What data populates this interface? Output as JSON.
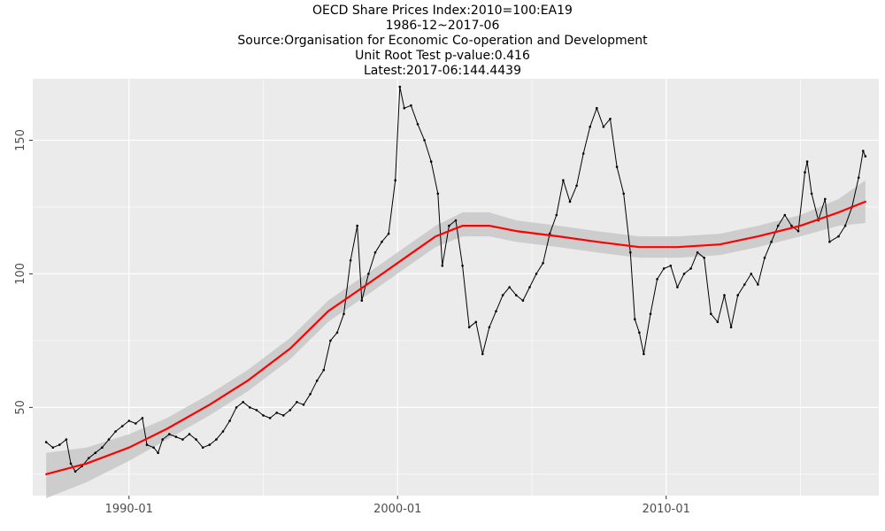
{
  "titles": {
    "line1": "OECD Share Prices Index:2010=100:EA19",
    "line2": "1986-12~2017-06",
    "line3": "Source:Organisation for Economic Co-operation and Development",
    "line4": "Unit Root Test p-value:0.416",
    "line5": "Latest:2017-06:144.4439"
  },
  "colors": {
    "panel": "#ebebeb",
    "grid_major": "#ffffff",
    "series": "#000000",
    "smooth": "#ff0000",
    "ribbon": "#c8c8c8"
  },
  "chart_data": {
    "type": "line",
    "title": "OECD Share Prices Index:2010=100:EA19",
    "subtitle": [
      "1986-12~2017-06",
      "Source:Organisation for Economic Co-operation and Development",
      "Unit Root Test p-value:0.416",
      "Latest:2017-06:144.4439"
    ],
    "xlabel": "",
    "ylabel": "",
    "xlim": [
      "1986-06",
      "2017-12"
    ],
    "ylim": [
      17,
      173
    ],
    "x_ticks": [
      "1990-01",
      "2000-01",
      "2010-01"
    ],
    "y_ticks": [
      50,
      100,
      150
    ],
    "grid": true,
    "series": [
      {
        "kind": "monthly-index-with-points",
        "points": [
          [
            "1986-12",
            37
          ],
          [
            "1987-03",
            35
          ],
          [
            "1987-06",
            36
          ],
          [
            "1987-09",
            38
          ],
          [
            "1987-11",
            29
          ],
          [
            "1988-01",
            26
          ],
          [
            "1988-04",
            28
          ],
          [
            "1988-07",
            31
          ],
          [
            "1988-10",
            33
          ],
          [
            "1989-01",
            35
          ],
          [
            "1989-04",
            38
          ],
          [
            "1989-07",
            41
          ],
          [
            "1989-10",
            43
          ],
          [
            "1990-01",
            45
          ],
          [
            "1990-04",
            44
          ],
          [
            "1990-07",
            46
          ],
          [
            "1990-09",
            36
          ],
          [
            "1990-12",
            35
          ],
          [
            "1991-02",
            33
          ],
          [
            "1991-04",
            38
          ],
          [
            "1991-07",
            40
          ],
          [
            "1991-10",
            39
          ],
          [
            "1992-01",
            38
          ],
          [
            "1992-04",
            40
          ],
          [
            "1992-07",
            38
          ],
          [
            "1992-10",
            35
          ],
          [
            "1993-01",
            36
          ],
          [
            "1993-04",
            38
          ],
          [
            "1993-07",
            41
          ],
          [
            "1993-10",
            45
          ],
          [
            "1994-01",
            50
          ],
          [
            "1994-04",
            52
          ],
          [
            "1994-07",
            50
          ],
          [
            "1994-10",
            49
          ],
          [
            "1995-01",
            47
          ],
          [
            "1995-04",
            46
          ],
          [
            "1995-07",
            48
          ],
          [
            "1995-10",
            47
          ],
          [
            "1996-01",
            49
          ],
          [
            "1996-04",
            52
          ],
          [
            "1996-07",
            51
          ],
          [
            "1996-10",
            55
          ],
          [
            "1997-01",
            60
          ],
          [
            "1997-04",
            64
          ],
          [
            "1997-07",
            75
          ],
          [
            "1997-10",
            78
          ],
          [
            "1998-01",
            85
          ],
          [
            "1998-04",
            105
          ],
          [
            "1998-07",
            118
          ],
          [
            "1998-09",
            90
          ],
          [
            "1998-12",
            100
          ],
          [
            "1999-03",
            108
          ],
          [
            "1999-06",
            112
          ],
          [
            "1999-09",
            115
          ],
          [
            "1999-12",
            135
          ],
          [
            "2000-02",
            170
          ],
          [
            "2000-04",
            162
          ],
          [
            "2000-07",
            163
          ],
          [
            "2000-10",
            156
          ],
          [
            "2001-01",
            150
          ],
          [
            "2001-04",
            142
          ],
          [
            "2001-07",
            130
          ],
          [
            "2001-09",
            103
          ],
          [
            "2001-12",
            118
          ],
          [
            "2002-03",
            120
          ],
          [
            "2002-06",
            103
          ],
          [
            "2002-09",
            80
          ],
          [
            "2002-12",
            82
          ],
          [
            "2003-03",
            70
          ],
          [
            "2003-06",
            80
          ],
          [
            "2003-09",
            86
          ],
          [
            "2003-12",
            92
          ],
          [
            "2004-03",
            95
          ],
          [
            "2004-06",
            92
          ],
          [
            "2004-09",
            90
          ],
          [
            "2004-12",
            95
          ],
          [
            "2005-03",
            100
          ],
          [
            "2005-06",
            104
          ],
          [
            "2005-09",
            115
          ],
          [
            "2005-12",
            122
          ],
          [
            "2006-03",
            135
          ],
          [
            "2006-06",
            127
          ],
          [
            "2006-09",
            133
          ],
          [
            "2006-12",
            145
          ],
          [
            "2007-03",
            155
          ],
          [
            "2007-06",
            162
          ],
          [
            "2007-09",
            155
          ],
          [
            "2007-12",
            158
          ],
          [
            "2008-03",
            140
          ],
          [
            "2008-06",
            130
          ],
          [
            "2008-09",
            108
          ],
          [
            "2008-11",
            83
          ],
          [
            "2009-01",
            78
          ],
          [
            "2009-03",
            70
          ],
          [
            "2009-06",
            85
          ],
          [
            "2009-09",
            98
          ],
          [
            "2009-12",
            102
          ],
          [
            "2010-03",
            103
          ],
          [
            "2010-06",
            95
          ],
          [
            "2010-09",
            100
          ],
          [
            "2010-12",
            102
          ],
          [
            "2011-03",
            108
          ],
          [
            "2011-06",
            106
          ],
          [
            "2011-09",
            85
          ],
          [
            "2011-12",
            82
          ],
          [
            "2012-03",
            92
          ],
          [
            "2012-06",
            80
          ],
          [
            "2012-09",
            92
          ],
          [
            "2012-12",
            96
          ],
          [
            "2013-03",
            100
          ],
          [
            "2013-06",
            96
          ],
          [
            "2013-09",
            106
          ],
          [
            "2013-12",
            112
          ],
          [
            "2014-03",
            118
          ],
          [
            "2014-06",
            122
          ],
          [
            "2014-09",
            118
          ],
          [
            "2014-12",
            116
          ],
          [
            "2015-03",
            138
          ],
          [
            "2015-04",
            142
          ],
          [
            "2015-06",
            130
          ],
          [
            "2015-09",
            120
          ],
          [
            "2015-12",
            128
          ],
          [
            "2016-02",
            112
          ],
          [
            "2016-06",
            114
          ],
          [
            "2016-09",
            118
          ],
          [
            "2016-12",
            125
          ],
          [
            "2017-03",
            136
          ],
          [
            "2017-05",
            146
          ],
          [
            "2017-06",
            144
          ]
        ]
      },
      {
        "kind": "smooth-trend",
        "points": [
          [
            "1986-12",
            25
          ],
          [
            "1988-06",
            29
          ],
          [
            "1990-01",
            35
          ],
          [
            "1991-06",
            42
          ],
          [
            "1993-01",
            51
          ],
          [
            "1994-06",
            60
          ],
          [
            "1996-01",
            72
          ],
          [
            "1997-06",
            86
          ],
          [
            "1999-01",
            97
          ],
          [
            "2000-06",
            107
          ],
          [
            "2001-06",
            114
          ],
          [
            "2002-06",
            118
          ],
          [
            "2003-06",
            118
          ],
          [
            "2004-06",
            116
          ],
          [
            "2006-01",
            114
          ],
          [
            "2007-06",
            112
          ],
          [
            "2009-01",
            110
          ],
          [
            "2010-06",
            110
          ],
          [
            "2012-01",
            111
          ],
          [
            "2013-06",
            114
          ],
          [
            "2015-01",
            118
          ],
          [
            "2016-06",
            123
          ],
          [
            "2017-06",
            127
          ]
        ],
        "band": [
          [
            16,
            33
          ],
          [
            22,
            35
          ],
          [
            30,
            40
          ],
          [
            38,
            46
          ],
          [
            47,
            55
          ],
          [
            56,
            64
          ],
          [
            68,
            76
          ],
          [
            82,
            90
          ],
          [
            93,
            101
          ],
          [
            103,
            111
          ],
          [
            110,
            118
          ],
          [
            114,
            123
          ],
          [
            114,
            123
          ],
          [
            112,
            120
          ],
          [
            110,
            118
          ],
          [
            108,
            116
          ],
          [
            106,
            114
          ],
          [
            106,
            114
          ],
          [
            107,
            115
          ],
          [
            110,
            118
          ],
          [
            114,
            122
          ],
          [
            118,
            128
          ],
          [
            119,
            135
          ]
        ]
      }
    ]
  }
}
